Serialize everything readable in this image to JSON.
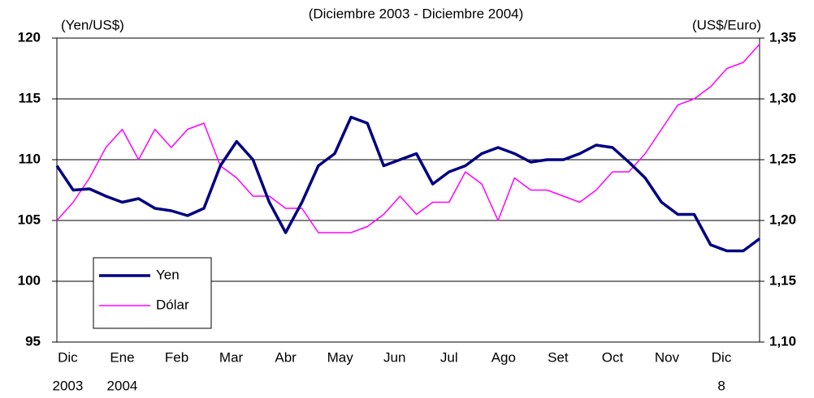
{
  "chart_data": {
    "type": "line",
    "subtitle": "(Diciembre 2003 - Diciembre 2004)",
    "ylabel": "(Yen/US$)",
    "y2label": "(US$/Euro)",
    "x": [
      -0.2,
      0.1,
      0.4,
      0.7,
      1,
      1.3,
      1.6,
      1.9,
      2.2,
      2.5,
      2.8,
      3.1,
      3.4,
      3.7,
      4,
      4.3,
      4.6,
      4.9,
      5.2,
      5.5,
      5.8,
      6.1,
      6.4,
      6.7,
      7,
      7.3,
      7.6,
      7.9,
      8.2,
      8.5,
      8.8,
      9.1,
      9.4,
      9.7,
      10,
      10.3,
      10.6,
      10.9,
      11.2,
      11.5,
      11.8,
      12.1,
      12.4,
      12.7
    ],
    "xlim": [
      -0.2,
      12.7
    ],
    "xticks": [
      {
        "value": 0,
        "label": "Dic"
      },
      {
        "value": 1,
        "label": "Ene"
      },
      {
        "value": 2,
        "label": "Feb"
      },
      {
        "value": 3,
        "label": "Mar"
      },
      {
        "value": 4,
        "label": "Abr"
      },
      {
        "value": 5,
        "label": "May"
      },
      {
        "value": 6,
        "label": "Jun"
      },
      {
        "value": 7,
        "label": "Jul"
      },
      {
        "value": 8,
        "label": "Ago"
      },
      {
        "value": 9,
        "label": "Set"
      },
      {
        "value": 10,
        "label": "Oct"
      },
      {
        "value": 11,
        "label": "Nov"
      },
      {
        "value": 12,
        "label": "Dic"
      }
    ],
    "xsublabels": [
      "2003",
      "2004",
      null,
      null,
      null,
      null,
      null,
      null,
      null,
      null,
      null,
      null,
      "8"
    ],
    "ylim": [
      95,
      120
    ],
    "yticks": [
      95,
      100,
      105,
      110,
      115,
      120
    ],
    "y2lim": [
      1.1,
      1.35
    ],
    "y2ticks": [
      {
        "value": 1.1,
        "label": "1,10"
      },
      {
        "value": 1.15,
        "label": "1,15"
      },
      {
        "value": 1.2,
        "label": "1,20"
      },
      {
        "value": 1.25,
        "label": "1,25"
      },
      {
        "value": 1.3,
        "label": "1,30"
      },
      {
        "value": 1.35,
        "label": "1,35"
      }
    ],
    "grid": true,
    "series": [
      {
        "name": "Yen",
        "color": "#000080",
        "values": [
          109.5,
          107.5,
          107.6,
          107,
          106.5,
          106.8,
          106,
          105.8,
          105.4,
          106,
          109.5,
          111.5,
          110,
          106.5,
          104,
          106.5,
          109.5,
          110.5,
          113.5,
          113,
          109.5,
          110,
          110.5,
          108,
          109,
          109.5,
          110.5,
          111,
          110.5,
          109.8,
          110,
          110,
          110.5,
          111.2,
          111,
          109.8,
          108.5,
          106.5,
          105.5,
          105.5,
          103,
          102.5,
          102.5,
          103.5
        ]
      },
      {
        "name": "Dólar",
        "color": "#ff00ff",
        "axis": "y2",
        "values": [
          1.2,
          1.215,
          1.235,
          1.26,
          1.275,
          1.25,
          1.275,
          1.26,
          1.275,
          1.28,
          1.245,
          1.235,
          1.22,
          1.22,
          1.21,
          1.21,
          1.19,
          1.19,
          1.19,
          1.195,
          1.205,
          1.22,
          1.205,
          1.215,
          1.215,
          1.24,
          1.23,
          1.2,
          1.235,
          1.225,
          1.225,
          1.22,
          1.215,
          1.225,
          1.24,
          1.24,
          1.255,
          1.275,
          1.295,
          1.3,
          1.31,
          1.325,
          1.33,
          1.345
        ]
      }
    ]
  }
}
